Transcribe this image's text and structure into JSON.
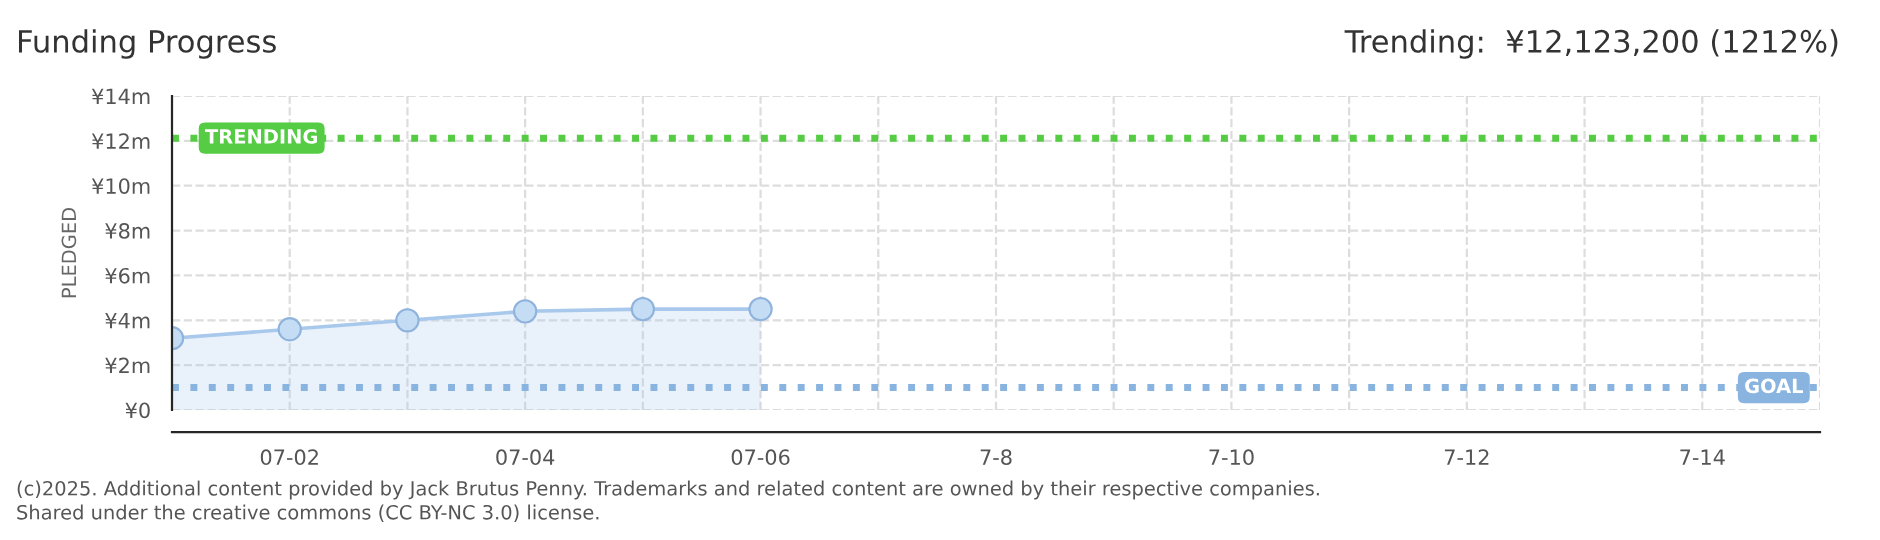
{
  "chart_data": {
    "type": "area",
    "title": "Funding Progress",
    "subtitle": "Trending:  ¥12,123,200 (1212%)",
    "ylabel": "PLEDGED",
    "categories": [
      null,
      "07-02",
      null,
      "07-04",
      null,
      "07-06",
      null,
      "7-8",
      null,
      "7-10",
      null,
      "7-12",
      null,
      "7-14",
      null
    ],
    "series": [
      {
        "color": "#a8c8ec",
        "values": [
          3.2,
          3.6,
          4.0,
          4.4,
          4.5,
          4.5,
          null,
          null,
          null,
          null,
          null,
          null,
          null,
          null,
          null
        ]
      }
    ],
    "marker": "circle",
    "ylim": [
      0,
      14
    ],
    "yticks": [
      {
        "value": 0,
        "label": "¥0"
      },
      {
        "value": 2,
        "label": "¥2m"
      },
      {
        "value": 4,
        "label": "¥4m"
      },
      {
        "value": 6,
        "label": "¥6m"
      },
      {
        "value": 8,
        "label": "¥8m"
      },
      {
        "value": 10,
        "label": "¥10m"
      },
      {
        "value": 12,
        "label": "¥12m"
      },
      {
        "value": 14,
        "label": "¥14m"
      }
    ],
    "grid": true,
    "ref_lines": [
      {
        "axis": "y",
        "value": 12.12,
        "label": "TRENDING",
        "color": "#55cc44",
        "line_style": "dotted"
      },
      {
        "axis": "y",
        "value": 1.0,
        "label": "GOAL",
        "color": "#8ab4e0",
        "line_style": "dotted"
      }
    ],
    "annotations": [
      "(c)2025. Additional content provided by Jack Brutus Penny. Trademarks and related content are owned by their respective companies.",
      "Shared under the creative commons (CC BY-NC 3.0) license."
    ]
  }
}
